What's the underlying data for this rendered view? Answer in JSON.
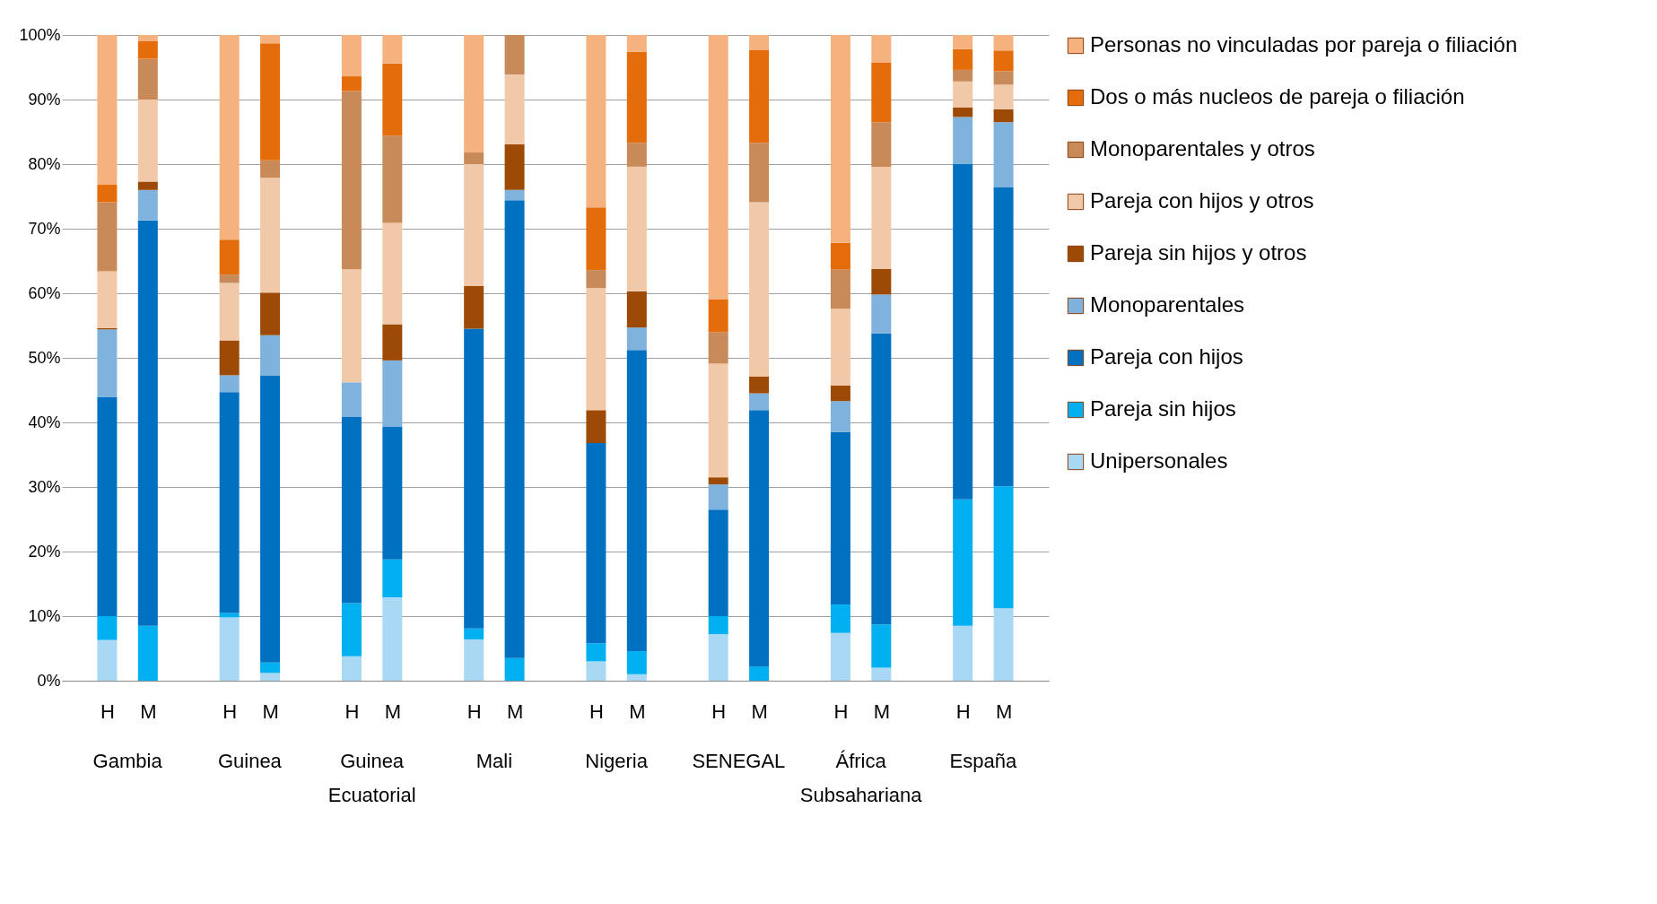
{
  "chart_data": {
    "type": "bar",
    "stacked": true,
    "categories": [
      "H",
      "M",
      "H",
      "M",
      "H",
      "M",
      "H",
      "M",
      "H",
      "M",
      "H",
      "M",
      "H",
      "M",
      "H",
      "M"
    ],
    "annotations": [
      "Gambia",
      "Guinea",
      "Guinea Ecuatorial",
      "Mali",
      "Nigeria",
      "SENEGAL",
      "África Subsahariana",
      "España"
    ],
    "ylim": [
      0,
      100
    ],
    "yticks": [
      {
        "value": 0,
        "label": "0%"
      },
      {
        "value": 10,
        "label": "10%"
      },
      {
        "value": 20,
        "label": "20%"
      },
      {
        "value": 30,
        "label": "30%"
      },
      {
        "value": 40,
        "label": "40%"
      },
      {
        "value": 50,
        "label": "50%"
      },
      {
        "value": 60,
        "label": "60%"
      },
      {
        "value": 70,
        "label": "70%"
      },
      {
        "value": 80,
        "label": "80%"
      },
      {
        "value": 90,
        "label": "90%"
      },
      {
        "value": 100,
        "label": "100%"
      }
    ],
    "grid": "y",
    "legend": "right",
    "series": [
      {
        "name": "Unipersonales",
        "color": "#a9d8f5",
        "values": [
          6.3,
          0,
          9.8,
          1.2,
          3.8,
          12.9,
          6.4,
          0,
          3.0,
          1.0,
          7.2,
          0,
          7.4,
          2.0,
          8.5,
          11.2
        ]
      },
      {
        "name": "Pareja sin hijos",
        "color": "#00b0f0",
        "values": [
          3.7,
          8.5,
          0.7,
          1.6,
          8.2,
          5.9,
          1.7,
          3.5,
          2.8,
          3.6,
          2.8,
          2.2,
          4.4,
          6.7,
          19.6,
          18.9
        ]
      },
      {
        "name": "Pareja con hijos",
        "color": "#0070c0",
        "values": [
          33.9,
          62.8,
          34.2,
          44.5,
          28.9,
          20.5,
          46.4,
          70.9,
          31.0,
          46.6,
          16.5,
          39.7,
          26.7,
          45.1,
          51.9,
          46.3
        ]
      },
      {
        "name": "Monoparentales",
        "color": "#7fb2dd",
        "values": [
          10.5,
          4.7,
          2.6,
          6.2,
          5.3,
          10.3,
          0,
          1.6,
          0,
          3.5,
          3.9,
          2.6,
          4.8,
          6.0,
          7.3,
          10.1
        ]
      },
      {
        "name": "Pareja sin hijos y otros",
        "color": "#9c4a06",
        "values": [
          0.2,
          1.3,
          5.4,
          6.6,
          0,
          5.6,
          6.6,
          7.1,
          5.1,
          5.6,
          1.1,
          2.6,
          2.4,
          4.0,
          1.5,
          2.0
        ]
      },
      {
        "name": "Pareja con hijos y otros",
        "color": "#f2c9a8",
        "values": [
          8.8,
          12.7,
          8.9,
          17.8,
          17.5,
          15.7,
          18.9,
          10.8,
          18.9,
          19.3,
          17.6,
          27.0,
          11.9,
          15.8,
          4.0,
          3.8
        ]
      },
      {
        "name": "Monoparentales y otros",
        "color": "#c98a5a",
        "values": [
          10.7,
          6.3,
          1.3,
          2.7,
          27.6,
          13.5,
          1.8,
          6.1,
          2.8,
          3.7,
          4.9,
          9.2,
          6.1,
          6.9,
          1.8,
          2.1
        ]
      },
      {
        "name": "Dos o más nucleos de pareja o filiación",
        "color": "#e46c0a",
        "values": [
          2.7,
          2.8,
          5.4,
          18.1,
          2.3,
          11.2,
          0,
          0,
          9.7,
          14.1,
          5.1,
          14.4,
          4.1,
          9.2,
          3.2,
          3.2
        ]
      },
      {
        "name": "Personas no vinculadas por pareja o filiación",
        "color": "#f5b27f",
        "values": [
          23.2,
          0.9,
          31.7,
          1.3,
          6.4,
          4.4,
          18.2,
          0,
          26.7,
          2.6,
          40.9,
          2.3,
          32.2,
          4.3,
          2.2,
          2.4
        ]
      }
    ]
  }
}
